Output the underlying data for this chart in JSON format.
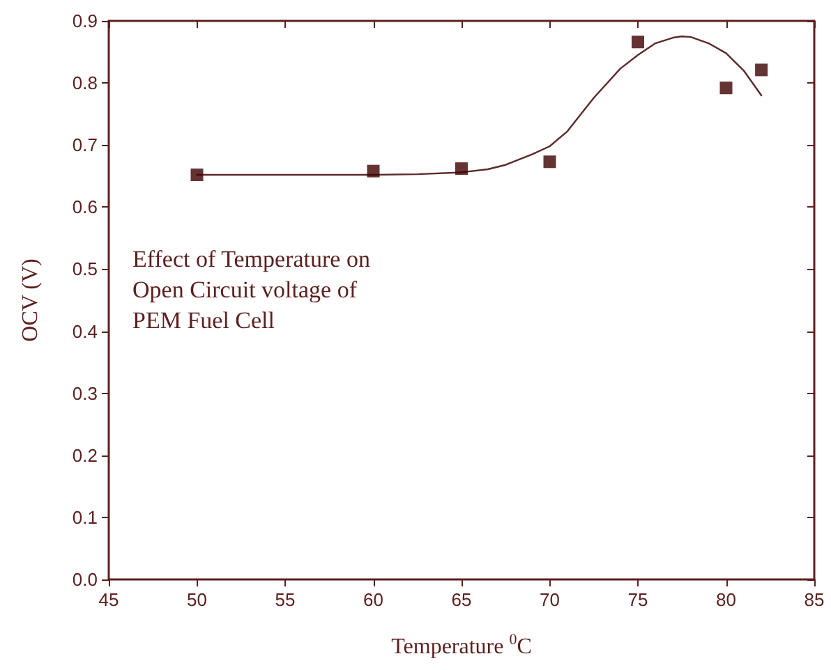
{
  "chart_data": {
    "type": "scatter",
    "xlabel": "Temperature $^{0}$C",
    "ylabel": "OCV (V)",
    "annotations": [
      "Effect of Temperature on Open Circuit voltage of PEM Fuel Cell"
    ],
    "xlim": [
      45,
      85
    ],
    "xticks": [
      45,
      50,
      55,
      60,
      65,
      70,
      75,
      80,
      85
    ],
    "ylim": [
      0,
      0.9
    ],
    "yticks": [
      {
        "value": 0,
        "label": "0.0"
      },
      0.1,
      0.2,
      0.3,
      0.4,
      0.5,
      0.6,
      0.7,
      0.8,
      0.9
    ],
    "grid": false,
    "series": [
      {
        "marker": "square",
        "color": "#3d0000",
        "x": [
          50,
          60,
          65,
          70,
          75,
          80,
          82
        ],
        "values": [
          0.652,
          0.658,
          0.662,
          0.673,
          0.866,
          0.792,
          0.821
        ]
      },
      {
        "type": "line",
        "marker": "none",
        "line_style": "solid",
        "color": "#5a2a2a",
        "x": [
          50,
          55,
          60,
          62.5,
          65,
          66.5,
          67.5,
          69,
          70,
          71,
          72.5,
          74,
          75,
          76,
          77,
          77.5,
          78,
          79,
          80,
          81,
          82
        ],
        "values": [
          0.652,
          0.652,
          0.652,
          0.653,
          0.656,
          0.661,
          0.668,
          0.685,
          0.698,
          0.722,
          0.776,
          0.823,
          0.845,
          0.864,
          0.873,
          0.875,
          0.874,
          0.864,
          0.848,
          0.82,
          0.78
        ]
      }
    ]
  }
}
